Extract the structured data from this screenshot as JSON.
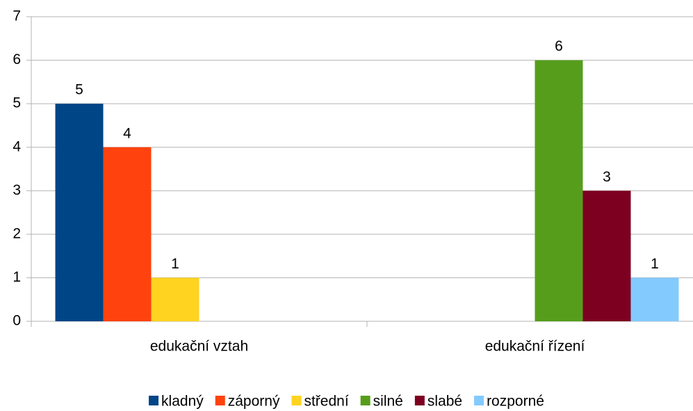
{
  "chart_data": {
    "type": "bar",
    "categories": [
      "edukační vztah",
      "edukační řízení"
    ],
    "series": [
      {
        "name": "kladný",
        "color": "#004586",
        "values": [
          5,
          null
        ]
      },
      {
        "name": "záporný",
        "color": "#ff420e",
        "values": [
          4,
          null
        ]
      },
      {
        "name": "střední",
        "color": "#ffd320",
        "values": [
          1,
          null
        ]
      },
      {
        "name": "silné",
        "color": "#579d1c",
        "values": [
          null,
          6
        ]
      },
      {
        "name": "slabé",
        "color": "#7e0021",
        "values": [
          null,
          3
        ]
      },
      {
        "name": "rozporné",
        "color": "#83caff",
        "values": [
          null,
          1
        ]
      }
    ],
    "ylim": [
      0,
      7
    ],
    "yticks": [
      0,
      1,
      2,
      3,
      4,
      5,
      6,
      7
    ],
    "grid": true,
    "legend": "bottom",
    "data_labels": true
  }
}
